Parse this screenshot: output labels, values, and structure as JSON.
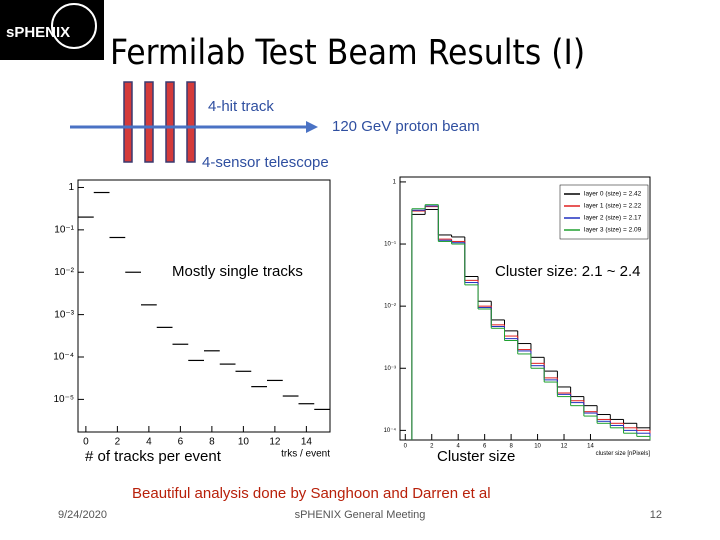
{
  "slide": {
    "logo": "sPHENIX",
    "title": "Fermilab Test Beam Results (I)",
    "diagram": {
      "track_label": "4-hit track",
      "beam_label": "120 GeV proton beam",
      "telescope_label": "4-sensor telescope"
    },
    "left_caption": "# of tracks per event",
    "right_caption": "Cluster size",
    "credit": "Beautiful analysis done by Sanghoon and Darren et al",
    "footer": {
      "date": "9/24/2020",
      "meeting": "sPHENIX General Meeting",
      "page": "12"
    }
  },
  "chart_data": [
    {
      "type": "scatter",
      "annotation": "Mostly single tracks",
      "xlabel": "trks / event",
      "x": [
        0,
        1,
        2,
        3,
        4,
        5,
        6,
        7,
        8,
        9,
        10,
        11,
        12,
        13,
        14,
        15
      ],
      "values": [
        0.2,
        0.76,
        0.066,
        0.01,
        0.0017,
        0.0005,
        0.0002,
        8.3e-05,
        0.00014,
        6.8e-05,
        4.6e-05,
        2e-05,
        2.8e-05,
        1.2e-05,
        7.9e-06,
        5.8e-06
      ],
      "color": "#000000",
      "log_y": true,
      "xlim": [
        -0.5,
        15.5
      ],
      "xticks": [
        0,
        2,
        4,
        6,
        8,
        10,
        12,
        14
      ],
      "ylim": [
        1.7e-06,
        1.5
      ],
      "yticks": [
        {
          "value": 1,
          "label": "1"
        },
        {
          "value": 0.1,
          "label": "10⁻¹"
        },
        {
          "value": 0.01,
          "label": "10⁻²"
        },
        {
          "value": 0.001,
          "label": "10⁻³"
        },
        {
          "value": 0.0001,
          "label": "10⁻⁴"
        },
        {
          "value": 1e-05,
          "label": "10⁻⁵"
        }
      ]
    },
    {
      "type": "step",
      "annotation": "Cluster size: 2.1 ~ 2.4",
      "xlabel": "cluster size [nPixels]",
      "x": [
        1,
        2,
        3,
        4,
        5,
        6,
        7,
        8,
        9,
        10,
        11,
        12,
        13,
        14,
        15,
        16,
        17,
        18
      ],
      "series": [
        {
          "name": "layer 0 (size) = 2.42",
          "color": "#000000",
          "values": [
            0.3,
            0.36,
            0.14,
            0.13,
            0.03,
            0.012,
            0.006,
            0.004,
            0.0025,
            0.0015,
            0.0009,
            0.0005,
            0.00035,
            0.00025,
            0.00018,
            0.00015,
            0.00013,
            0.00011
          ]
        },
        {
          "name": "layer 1 (size) = 2.22",
          "color": "#e02020",
          "values": [
            0.34,
            0.4,
            0.12,
            0.11,
            0.026,
            0.01,
            0.005,
            0.0033,
            0.002,
            0.0012,
            0.0007,
            0.0004,
            0.0003,
            0.0002,
            0.00015,
            0.00013,
            0.00011,
            0.0001
          ]
        },
        {
          "name": "layer 2 (size) = 2.17",
          "color": "#2030c0",
          "values": [
            0.35,
            0.41,
            0.115,
            0.105,
            0.024,
            0.0095,
            0.0047,
            0.003,
            0.0019,
            0.0011,
            0.00065,
            0.00038,
            0.00028,
            0.00019,
            0.00014,
            0.00012,
            0.0001,
            9e-05
          ]
        },
        {
          "name": "layer 3 (size) = 2.09",
          "color": "#20a030",
          "values": [
            0.37,
            0.43,
            0.11,
            0.1,
            0.022,
            0.009,
            0.0044,
            0.0028,
            0.0017,
            0.001,
            0.0006,
            0.00035,
            0.00025,
            0.00017,
            0.00013,
            0.00011,
            9e-05,
            8e-05
          ]
        }
      ],
      "log_y": true,
      "legend": "top-right",
      "xlim": [
        -0.4,
        18.5
      ],
      "xticks": [
        0,
        2,
        4,
        6,
        8,
        10,
        12,
        14
      ],
      "ylim": [
        7e-05,
        1.2
      ],
      "yticks": [
        {
          "value": 1,
          "label": "1"
        },
        {
          "value": 0.1,
          "label": "10⁻¹"
        },
        {
          "value": 0.01,
          "label": "10⁻²"
        },
        {
          "value": 0.001,
          "label": "10⁻³"
        },
        {
          "value": 0.0001,
          "label": "10⁻⁴"
        }
      ]
    }
  ]
}
